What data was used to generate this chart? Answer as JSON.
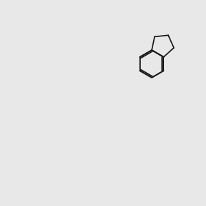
{
  "bg_color": "#e8e8e8",
  "bond_color": "#1a1a1a",
  "N_color": "#0000ff",
  "O_color": "#ff0000",
  "S_color": "#cccc00",
  "lw": 1.5,
  "dlw": 1.5
}
